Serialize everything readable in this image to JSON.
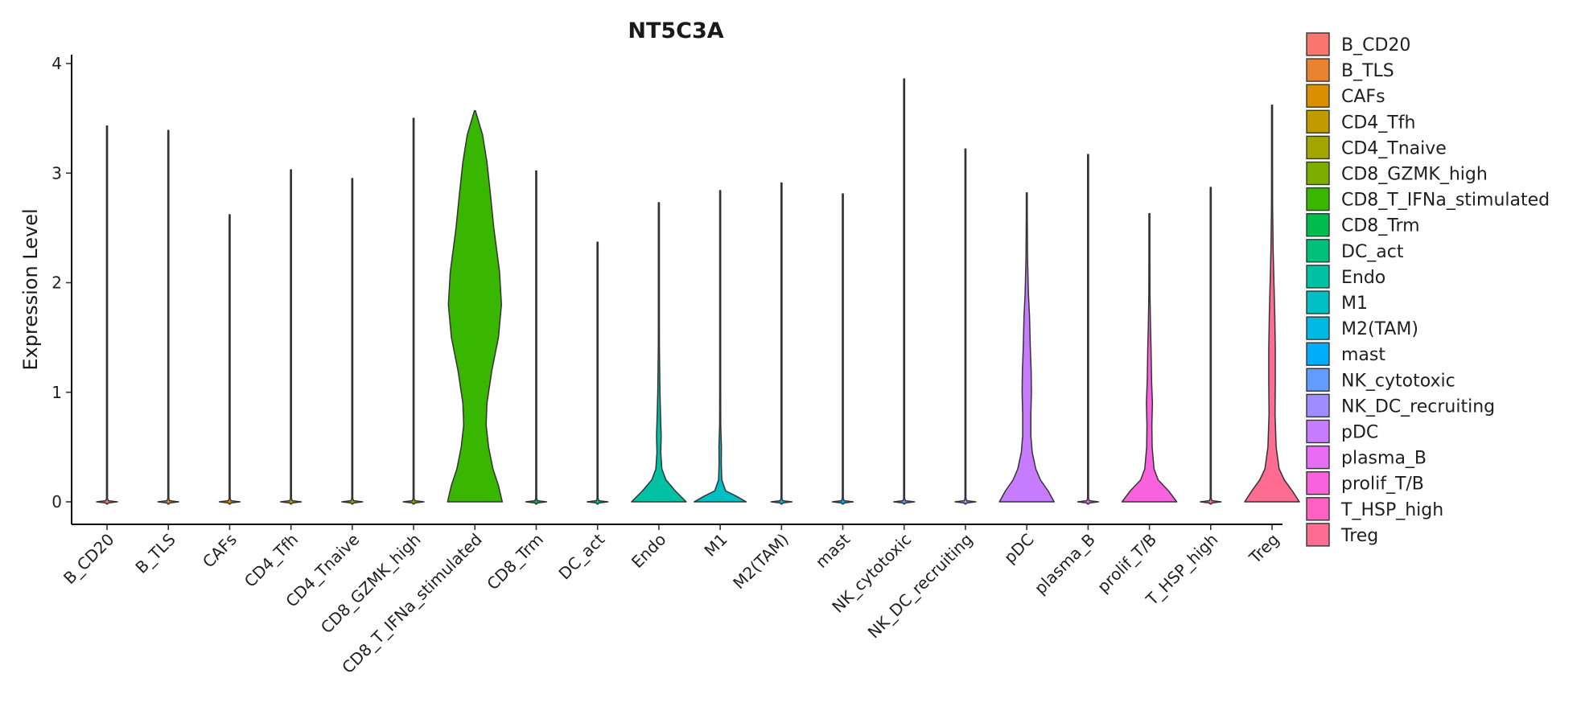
{
  "chart_data": {
    "type": "violin",
    "title": "NT5C3A",
    "xlabel": "",
    "ylabel": "Expression Level",
    "ylim": [
      -0.2,
      4.1
    ],
    "yticks": [
      0,
      1,
      2,
      3,
      4
    ],
    "legend_position": "right",
    "grid": false,
    "categories": [
      {
        "name": "B_CD20",
        "color": "#F8766D",
        "max": 3.43,
        "profile": []
      },
      {
        "name": "B_TLS",
        "color": "#EA8331",
        "max": 3.39,
        "profile": []
      },
      {
        "name": "CAFs",
        "color": "#D89000",
        "max": 2.62,
        "profile": []
      },
      {
        "name": "CD4_Tfh",
        "color": "#C09B00",
        "max": 3.03,
        "profile": []
      },
      {
        "name": "CD4_Tnaive",
        "color": "#A3A500",
        "max": 2.95,
        "profile": []
      },
      {
        "name": "CD8_GZMK_high",
        "color": "#7CAE00",
        "max": 3.5,
        "profile": []
      },
      {
        "name": "CD8_T_IFNa_stimulated",
        "color": "#39B600",
        "max": 3.57,
        "profile": [
          [
            0,
            1.0
          ],
          [
            0.15,
            0.86
          ],
          [
            0.3,
            0.66
          ],
          [
            0.5,
            0.5
          ],
          [
            0.7,
            0.41
          ],
          [
            0.9,
            0.44
          ],
          [
            1.2,
            0.62
          ],
          [
            1.5,
            0.86
          ],
          [
            1.8,
            0.97
          ],
          [
            2.1,
            0.9
          ],
          [
            2.5,
            0.69
          ],
          [
            2.8,
            0.57
          ],
          [
            3.1,
            0.44
          ],
          [
            3.35,
            0.28
          ],
          [
            3.5,
            0.1
          ],
          [
            3.57,
            0
          ]
        ]
      },
      {
        "name": "CD8_Trm",
        "color": "#00BB4E",
        "max": 3.02,
        "profile": []
      },
      {
        "name": "DC_act",
        "color": "#00BF7D",
        "max": 2.37,
        "profile": []
      },
      {
        "name": "Endo",
        "color": "#00C1A3",
        "max": 2.73,
        "profile": [
          [
            0,
            1.0
          ],
          [
            0.1,
            0.6
          ],
          [
            0.2,
            0.26
          ],
          [
            0.3,
            0.11
          ],
          [
            0.45,
            0.07
          ],
          [
            0.6,
            0.085
          ],
          [
            0.8,
            0.06
          ],
          [
            1.0,
            0.04
          ],
          [
            1.2,
            0.03
          ],
          [
            1.4,
            0.02
          ],
          [
            1.7,
            0.012
          ],
          [
            2.0,
            0.009
          ],
          [
            2.73,
            0
          ]
        ]
      },
      {
        "name": "M1",
        "color": "#00BFC4",
        "max": 2.84,
        "profile": [
          [
            0,
            0.95
          ],
          [
            0.05,
            0.6
          ],
          [
            0.1,
            0.2
          ],
          [
            0.2,
            0.06
          ],
          [
            0.35,
            0.04
          ],
          [
            0.5,
            0.045
          ],
          [
            0.7,
            0.02
          ],
          [
            1.0,
            0.012
          ],
          [
            1.5,
            0.01
          ],
          [
            2.84,
            0
          ]
        ]
      },
      {
        "name": "M2(TAM)",
        "color": "#00B9E3",
        "max": 2.91,
        "profile": []
      },
      {
        "name": "mast",
        "color": "#00ADFA",
        "max": 2.81,
        "profile": []
      },
      {
        "name": "NK_cytotoxic",
        "color": "#619CFF",
        "max": 3.86,
        "profile": []
      },
      {
        "name": "NK_DC_recruiting",
        "color": "#9F8CFF",
        "max": 3.22,
        "profile": []
      },
      {
        "name": "pDC",
        "color": "#C77CFF",
        "max": 2.82,
        "profile": [
          [
            0,
            1.0
          ],
          [
            0.1,
            0.78
          ],
          [
            0.2,
            0.5
          ],
          [
            0.3,
            0.33
          ],
          [
            0.45,
            0.2
          ],
          [
            0.6,
            0.15
          ],
          [
            0.8,
            0.15
          ],
          [
            1.0,
            0.17
          ],
          [
            1.2,
            0.16
          ],
          [
            1.4,
            0.13
          ],
          [
            1.7,
            0.1
          ],
          [
            1.9,
            0.06
          ],
          [
            2.2,
            0.03
          ],
          [
            2.6,
            0.01
          ],
          [
            2.82,
            0
          ]
        ]
      },
      {
        "name": "plasma_B",
        "color": "#E76BF3",
        "max": 3.17,
        "profile": []
      },
      {
        "name": "prolif_T/B",
        "color": "#F962DD",
        "max": 2.63,
        "profile": [
          [
            0,
            1.0
          ],
          [
            0.1,
            0.7
          ],
          [
            0.2,
            0.32
          ],
          [
            0.3,
            0.17
          ],
          [
            0.5,
            0.1
          ],
          [
            0.7,
            0.09
          ],
          [
            0.9,
            0.11
          ],
          [
            1.1,
            0.08
          ],
          [
            1.4,
            0.06
          ],
          [
            1.6,
            0.04
          ],
          [
            1.9,
            0.02
          ],
          [
            2.2,
            0.01
          ],
          [
            2.63,
            0
          ]
        ]
      },
      {
        "name": "T_HSP_high",
        "color": "#FF61C3",
        "max": 2.87,
        "profile": []
      },
      {
        "name": "Treg",
        "color": "#FF6C91",
        "max": 3.62,
        "profile": [
          [
            0,
            1.0
          ],
          [
            0.1,
            0.74
          ],
          [
            0.2,
            0.45
          ],
          [
            0.3,
            0.26
          ],
          [
            0.5,
            0.15
          ],
          [
            0.8,
            0.11
          ],
          [
            1.1,
            0.12
          ],
          [
            1.4,
            0.12
          ],
          [
            1.7,
            0.1
          ],
          [
            2.0,
            0.07
          ],
          [
            2.3,
            0.04
          ],
          [
            2.7,
            0.02
          ],
          [
            3.1,
            0.01
          ],
          [
            3.62,
            0
          ]
        ]
      }
    ]
  }
}
